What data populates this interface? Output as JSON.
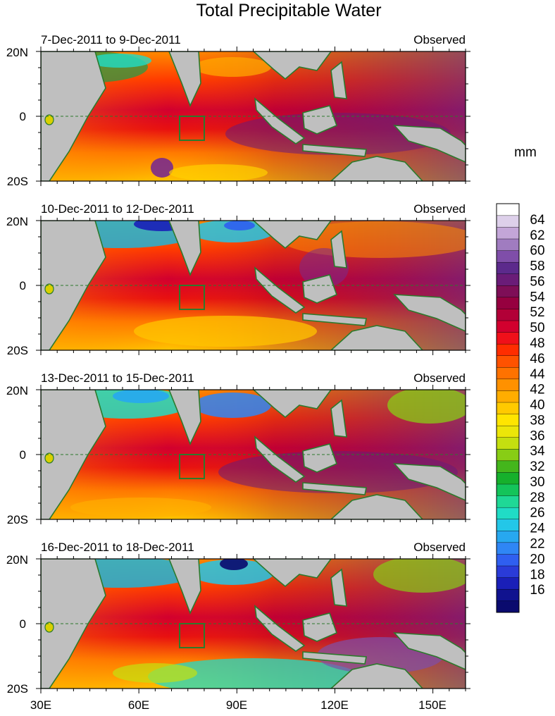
{
  "chart_data": {
    "type": "heatmap",
    "title": "Total Precipitable Water",
    "units_label": "mm",
    "x_ticks": [
      "30E",
      "60E",
      "90E",
      "120E",
      "150E"
    ],
    "x_tick_values": [
      30,
      60,
      90,
      120,
      150
    ],
    "x_range": [
      30,
      160
    ],
    "y_ticks": [
      "20N",
      "0",
      "20S"
    ],
    "y_tick_values": [
      20,
      0,
      -20
    ],
    "y_range": [
      -20,
      20
    ],
    "box_region": {
      "lon": [
        73,
        80
      ],
      "lat": [
        -7.5,
        0
      ]
    },
    "colorbar_labels": [
      "16",
      "18",
      "20",
      "22",
      "24",
      "26",
      "28",
      "30",
      "32",
      "34",
      "36",
      "38",
      "40",
      "42",
      "44",
      "46",
      "48",
      "50",
      "52",
      "54",
      "56",
      "58",
      "60",
      "62",
      "64"
    ],
    "colorbar_colors": [
      "#0a0a6e",
      "#10128f",
      "#1a1fb8",
      "#2a3bd8",
      "#2f5ff0",
      "#2f86f5",
      "#27a8f0",
      "#23c7e8",
      "#20dcc6",
      "#1fd896",
      "#14c45a",
      "#16b02c",
      "#44b61c",
      "#88cd15",
      "#c4df10",
      "#ece609",
      "#ffe500",
      "#ffca00",
      "#ffad00",
      "#ff9100",
      "#ff7200",
      "#ff5200",
      "#ff2d00",
      "#f0101a",
      "#d2002e",
      "#b20037",
      "#96003f",
      "#7e0e57",
      "#6a1c78",
      "#5c2a8c",
      "#7f4ea9",
      "#a07cc0",
      "#c3a6d8",
      "#ddd0ea",
      "#ffffff"
    ],
    "panels": [
      {
        "date_range": "7-Dec-2011 to 9-Dec-2011",
        "label": "Observed"
      },
      {
        "date_range": "10-Dec-2011 to 12-Dec-2011",
        "label": "Observed"
      },
      {
        "date_range": "13-Dec-2011 to 15-Dec-2011",
        "label": "Observed"
      },
      {
        "date_range": "16-Dec-2011 to 18-Dec-2011",
        "label": "Observed"
      }
    ]
  }
}
